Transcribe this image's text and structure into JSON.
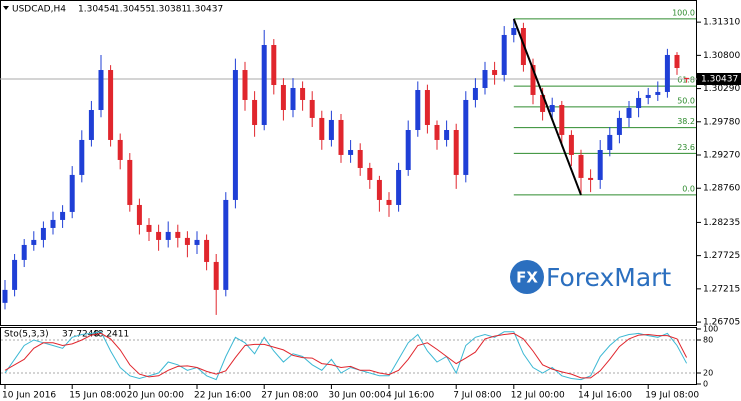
{
  "chart_data": {
    "type": "candlestick",
    "header": {
      "symbol": "USDCAD,H4"
    },
    "categories": [
      "10 Jun 2016",
      null,
      null,
      null,
      null,
      null,
      null,
      "15 Jun 08:00",
      null,
      null,
      null,
      null,
      null,
      "20 Jun 00:00",
      null,
      null,
      null,
      null,
      null,
      null,
      "22 Jun 16:00",
      null,
      null,
      null,
      null,
      null,
      null,
      "27 Jun 08:00",
      null,
      null,
      null,
      null,
      null,
      null,
      "30 Jun 00:00",
      null,
      null,
      null,
      null,
      null,
      "4 Jul 16:00",
      null,
      null,
      null,
      null,
      null,
      null,
      "7 Jul 08:00",
      null,
      null,
      null,
      null,
      null,
      "12 Jul 00:00",
      null,
      null,
      null,
      null,
      null,
      null,
      "14 Jul 16:00",
      null,
      null,
      null,
      null,
      null,
      null,
      "19 Jul 08:00",
      null,
      null,
      null,
      null
    ],
    "open": [
      1.27,
      1.27199,
      1.27659,
      1.27889,
      1.27966,
      1.2815,
      1.28273,
      1.28396,
      1.28964,
      1.29501,
      1.29961,
      1.30575,
      1.29501,
      1.29194,
      1.28503,
      1.28196,
      1.28089,
      1.27966,
      1.28089,
      1.27997,
      1.27889,
      1.27966,
      1.27628,
      1.27199,
      1.2858,
      1.30575,
      1.30115,
      1.29731,
      1.30959,
      1.30345,
      1.29961,
      1.30299,
      1.30115,
      1.29839,
      1.29501,
      1.29808,
      1.29271,
      1.29347,
      1.29071,
      1.28887,
      1.2858,
      1.28503,
      1.2904,
      1.29654,
      1.30268,
      1.29731,
      1.29501,
      1.29654,
      1.28964,
      1.30115,
      1.30299,
      1.30575,
      1.30499,
      1.31113,
      1.3122,
      1.30652,
      1.30192,
      1.29931,
      1.30038,
      1.29578,
      1.29271,
      1.28918,
      1.28887,
      1.29347,
      1.29578,
      1.29839,
      1.29992,
      1.30146,
      1.30192,
      1.30238,
      1.30806,
      1.30454
    ],
    "high": [
      1.2735,
      1.2775,
      1.2798,
      1.281,
      1.2825,
      1.284,
      1.285,
      1.291,
      1.2965,
      1.301,
      1.30806,
      1.3065,
      1.296,
      1.293,
      1.286,
      1.283,
      1.282,
      1.2825,
      1.282,
      1.281,
      1.281,
      1.2805,
      1.2775,
      1.287,
      1.3075,
      1.307,
      1.3025,
      1.3119,
      1.3105,
      1.3045,
      1.3045,
      1.304,
      1.3025,
      1.2995,
      1.2995,
      1.299,
      1.295,
      1.2945,
      1.2915,
      1.2895,
      1.287,
      1.2915,
      1.298,
      1.304,
      1.3035,
      1.298,
      1.298,
      1.2975,
      1.3025,
      1.3045,
      1.307,
      1.307,
      1.3125,
      1.3136,
      1.313,
      1.3075,
      1.303,
      1.3015,
      1.301,
      1.2965,
      1.2935,
      1.2905,
      1.295,
      1.297,
      1.2995,
      1.301,
      1.3025,
      1.303,
      1.304,
      1.309,
      1.3085,
      1.30455
    ],
    "low": [
      1.269,
      1.271,
      1.2755,
      1.278,
      1.2785,
      1.2805,
      1.2815,
      1.283,
      1.2885,
      1.294,
      1.2985,
      1.294,
      1.2905,
      1.284,
      1.2805,
      1.2795,
      1.278,
      1.2785,
      1.2785,
      1.277,
      1.2775,
      1.275,
      1.26815,
      1.271,
      1.2845,
      1.2995,
      1.2955,
      1.2965,
      1.302,
      1.298,
      1.2985,
      1.2995,
      1.297,
      1.2935,
      1.294,
      1.2915,
      1.2915,
      1.2895,
      1.2875,
      1.284,
      1.2832,
      1.284,
      1.2895,
      1.2955,
      1.296,
      1.2935,
      1.294,
      1.2875,
      1.2885,
      1.3,
      1.302,
      1.3035,
      1.304,
      1.31,
      1.3055,
      1.3005,
      1.298,
      1.298,
      1.294,
      1.291,
      1.28657,
      1.287,
      1.2875,
      1.2925,
      1.2945,
      1.297,
      1.2985,
      1.3005,
      1.301,
      1.3015,
      1.305,
      1.30381
    ],
    "close": [
      1.27199,
      1.27659,
      1.27889,
      1.27966,
      1.2815,
      1.28273,
      1.28396,
      1.28964,
      1.29501,
      1.29961,
      1.30575,
      1.29501,
      1.29194,
      1.28503,
      1.28196,
      1.28089,
      1.27966,
      1.28089,
      1.27997,
      1.27889,
      1.27966,
      1.27628,
      1.27199,
      1.2858,
      1.30575,
      1.30115,
      1.29731,
      1.30959,
      1.30345,
      1.29961,
      1.30299,
      1.30115,
      1.29839,
      1.29501,
      1.29808,
      1.29271,
      1.29347,
      1.29071,
      1.28887,
      1.2858,
      1.28503,
      1.2904,
      1.29654,
      1.30268,
      1.29731,
      1.29501,
      1.29654,
      1.28964,
      1.30115,
      1.30299,
      1.30575,
      1.30499,
      1.31113,
      1.3122,
      1.30652,
      1.30192,
      1.29931,
      1.30038,
      1.29578,
      1.29271,
      1.28918,
      1.28887,
      1.29347,
      1.29578,
      1.29839,
      1.29992,
      1.30146,
      1.30192,
      1.30238,
      1.30806,
      1.30606,
      1.30437
    ],
    "colors": {
      "up": "#1f3fd6",
      "down": "#e0262d"
    },
    "ylim": [
      1.2666,
      1.3165
    ],
    "yticks": [
      {
        "value": 1.3131,
        "label": "1.31310"
      },
      {
        "value": 1.308,
        "label": "1.30800"
      },
      {
        "value": 1.3029,
        "label": "1.30290"
      },
      {
        "value": 1.2978,
        "label": "1.29780"
      },
      {
        "value": 1.2927,
        "label": "1.29270"
      },
      {
        "value": 1.2876,
        "label": "1.28760"
      },
      1.28235,
      1.27725,
      1.27215,
      1.26705
    ],
    "current_price_line": true,
    "fibonacci": {
      "color": "#2e8b2e",
      "from": {
        "index": 53,
        "price": 1.3136
      },
      "to": {
        "index": 60,
        "price": 1.28657
      },
      "levels": [
        {
          "value": 100,
          "label": "100.0"
        },
        61.8,
        {
          "value": 50,
          "label": "50.0"
        },
        38.2,
        23.6,
        {
          "value": 0,
          "label": "0.0"
        }
      ]
    },
    "watermark": {
      "logo": "FX",
      "text": "ForexMart"
    },
    "indicator": {
      "type": "line",
      "name": "Sto(5,3,3)",
      "ylim": [
        0,
        100
      ],
      "yticks": [
        100,
        80,
        20,
        0
      ],
      "series": [
        {
          "color": "#3cb8d4",
          "values": [
            20,
            45,
            70,
            80,
            75,
            70,
            65,
            85,
            90,
            92,
            95,
            60,
            30,
            15,
            10,
            15,
            20,
            40,
            35,
            25,
            30,
            15,
            8,
            50,
            85,
            75,
            55,
            85,
            60,
            40,
            55,
            50,
            35,
            25,
            45,
            20,
            30,
            25,
            20,
            15,
            15,
            45,
            75,
            90,
            60,
            40,
            50,
            20,
            70,
            85,
            90,
            85,
            95,
            95,
            55,
            30,
            20,
            30,
            15,
            10,
            8,
            15,
            50,
            70,
            85,
            90,
            92,
            88,
            85,
            92,
            70,
            37.7248
          ]
        },
        {
          "color": "#e0262d",
          "values": [
            25,
            35,
            45,
            65,
            75,
            75,
            70,
            73,
            80,
            89,
            92,
            82,
            62,
            35,
            18,
            13,
            15,
            25,
            32,
            33,
            30,
            23,
            18,
            24,
            48,
            70,
            72,
            72,
            67,
            62,
            52,
            48,
            47,
            37,
            35,
            30,
            32,
            25,
            25,
            20,
            17,
            25,
            45,
            70,
            75,
            63,
            50,
            37,
            47,
            58,
            82,
            87,
            90,
            92,
            82,
            60,
            35,
            27,
            22,
            18,
            11,
            11,
            24,
            45,
            68,
            82,
            89,
            90,
            88,
            88,
            82,
            48.2411
          ]
        }
      ]
    }
  }
}
